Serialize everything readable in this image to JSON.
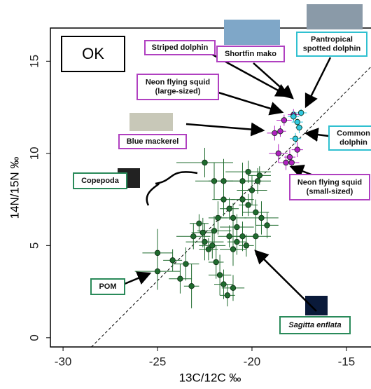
{
  "chart_data": {
    "type": "scatter",
    "x_label": "13C/12C ‰",
    "y_label": "14N/15N ‰",
    "xlim": [
      -30.67,
      -13.7
    ],
    "ylim": [
      -0.5,
      16.8
    ],
    "xticks": [
      -30,
      -25,
      -20,
      -15
    ],
    "yticks": [
      0,
      5,
      10,
      15
    ],
    "series": [
      {
        "color": "#1f6b2e",
        "x": [
          -25,
          -25,
          -24.2,
          -23.8,
          -23.5,
          -23.2,
          -23.1,
          -22.8,
          -22.6,
          -22.5,
          -22.3,
          -22.1,
          -21.9,
          -21.7,
          -21.5,
          -21.3,
          -21,
          -22.5,
          -22,
          -21.5,
          -21.5,
          -21.2,
          -21,
          -20.8,
          -20.5,
          -20.5,
          -20.2,
          -20,
          -19.8,
          -19.6,
          -19.5,
          -20.2,
          -20.5,
          -20.8,
          -21,
          -20.3,
          -19.8,
          -19.2,
          -22,
          -21.8,
          -21.2,
          -19.7
        ],
        "values": [
          4.6,
          3.6,
          4.2,
          3.2,
          4,
          2.8,
          5.5,
          6.2,
          5.7,
          5.2,
          4.8,
          5,
          4.1,
          3.4,
          2.9,
          2.3,
          2.7,
          9.5,
          8.5,
          8.5,
          7.5,
          7,
          6.5,
          6,
          8.5,
          7.5,
          7.2,
          8,
          6.8,
          8.8,
          6.5,
          9,
          5.5,
          5.2,
          4.8,
          5,
          5.5,
          6.1,
          5.8,
          6.5,
          5.5,
          8.5
        ],
        "xerr": [
          0.8,
          1.2,
          0.5,
          0.6,
          0.7,
          0.4,
          0.9,
          0.5,
          0.6,
          1,
          0.5,
          0.7,
          0.4,
          0.6,
          0.5,
          0.4,
          0.6,
          1.5,
          1,
          0.8,
          0.6,
          0.5,
          0.7,
          0.9,
          1,
          0.6,
          0.5,
          0.8,
          0.7,
          0.6,
          0.9,
          1.2,
          0.6,
          0.5,
          0.7,
          0.4,
          0.8,
          0.6,
          0.9,
          0.5,
          0.6,
          0.7
        ],
        "yerr": [
          1.3,
          1,
          0.6,
          0.8,
          0.9,
          1.2,
          0.7,
          0.5,
          0.8,
          1,
          0.6,
          0.7,
          0.9,
          1.1,
          0.8,
          0.6,
          0.7,
          0.8,
          1,
          1.2,
          0.9,
          0.6,
          0.8,
          0.7,
          1,
          0.9,
          0.6,
          0.8,
          0.7,
          0.5,
          0.9,
          0.6,
          0.8,
          0.7,
          0.9,
          0.6,
          1,
          0.7,
          0.8,
          0.9,
          0.6,
          0.7
        ]
      },
      {
        "color": "#b020c0",
        "x": [
          -18.8,
          -18.5,
          -18.3,
          -17.8,
          -18.6,
          -18.2,
          -18,
          -17.9,
          -17.6
        ],
        "values": [
          11.1,
          11.2,
          11.8,
          12.1,
          10,
          9.5,
          9.8,
          9.5,
          10.2
        ],
        "xerr": [
          0.4,
          0.3,
          0.4,
          0.3,
          0.5,
          0.4,
          0.3,
          0.4,
          0.3
        ],
        "yerr": [
          0.4,
          0.3,
          0.3,
          0.3,
          0.5,
          0.4,
          0.4,
          0.3,
          0.4
        ]
      },
      {
        "color": "#30c8e0",
        "x": [
          -17.8,
          -17.6,
          -17.5,
          -17.7,
          -17.4
        ],
        "values": [
          12,
          11.7,
          11.4,
          10.8,
          12.2
        ],
        "xerr": [
          0.3,
          0.3,
          0.2,
          0.3,
          0.3
        ],
        "yerr": [
          0.3,
          0.2,
          0.3,
          0.3,
          0.2
        ]
      }
    ],
    "reference_line": {
      "x": [
        -28.5,
        -13.7
      ],
      "y": [
        -0.5,
        14.7
      ]
    },
    "stamp": "OK",
    "annotations": [
      {
        "lines": [
          "Striped dolphin"
        ],
        "color": "#b040c0"
      },
      {
        "lines": [
          "Shortfin mako"
        ],
        "color": "#b040c0"
      },
      {
        "lines": [
          "Pantropical",
          "spotted dolphin"
        ],
        "color": "#30c0d0"
      },
      {
        "lines": [
          "Neon flying squid",
          "(large-sized)"
        ],
        "color": "#b040c0"
      },
      {
        "lines": [
          "Blue mackerel"
        ],
        "color": "#b040c0"
      },
      {
        "lines": [
          "Common",
          "dolphin"
        ],
        "color": "#30c0d0"
      },
      {
        "lines": [
          "Copepoda"
        ],
        "color": "#2a8a5a"
      },
      {
        "lines": [
          "Neon flying squid",
          "(small-sized)"
        ],
        "color": "#b040c0"
      },
      {
        "lines": [
          "POM"
        ],
        "color": "#2a8a5a"
      },
      {
        "lines": [
          "Sagitta enflata"
        ],
        "color": "#2a8a5a"
      }
    ]
  }
}
